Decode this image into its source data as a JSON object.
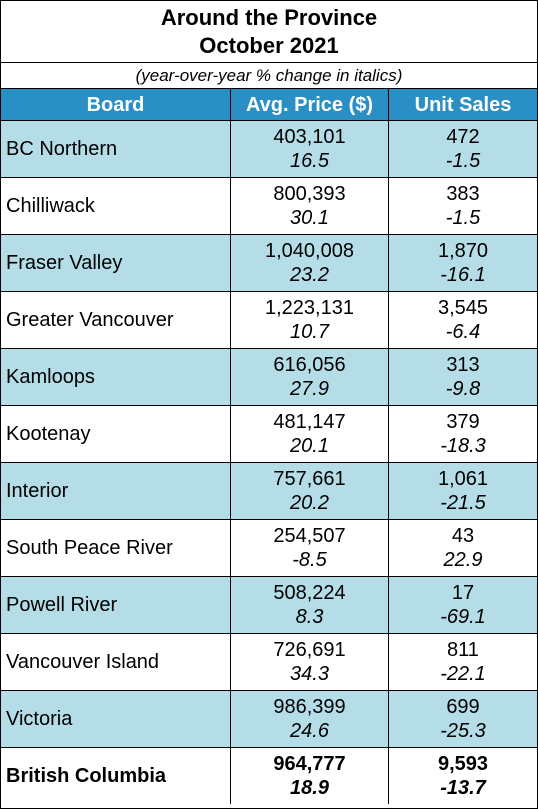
{
  "title_line1": "Around the Province",
  "title_line2": "October  2021",
  "subtitle": "(year-over-year % change in italics)",
  "columns": [
    "Board",
    "Avg. Price ($)",
    "Unit Sales"
  ],
  "rows": [
    {
      "board": "BC Northern",
      "price": "403,101",
      "price_change": "16.5",
      "sales": "472",
      "sales_change": "-1.5"
    },
    {
      "board": "Chilliwack",
      "price": "800,393",
      "price_change": "30.1",
      "sales": "383",
      "sales_change": "-1.5"
    },
    {
      "board": "Fraser Valley",
      "price": "1,040,008",
      "price_change": "23.2",
      "sales": "1,870",
      "sales_change": "-16.1"
    },
    {
      "board": "Greater Vancouver",
      "price": "1,223,131",
      "price_change": "10.7",
      "sales": "3,545",
      "sales_change": "-6.4"
    },
    {
      "board": "Kamloops",
      "price": "616,056",
      "price_change": "27.9",
      "sales": "313",
      "sales_change": "-9.8"
    },
    {
      "board": "Kootenay",
      "price": "481,147",
      "price_change": "20.1",
      "sales": "379",
      "sales_change": "-18.3"
    },
    {
      "board": "Interior",
      "price": "757,661",
      "price_change": "20.2",
      "sales": "1,061",
      "sales_change": "-21.5"
    },
    {
      "board": "South Peace River",
      "price": "254,507",
      "price_change": "-8.5",
      "sales": "43",
      "sales_change": "22.9"
    },
    {
      "board": "Powell River",
      "price": "508,224",
      "price_change": "8.3",
      "sales": "17",
      "sales_change": "-69.1"
    },
    {
      "board": "Vancouver Island",
      "price": "726,691",
      "price_change": "34.3",
      "sales": "811",
      "sales_change": "-22.1"
    },
    {
      "board": "Victoria",
      "price": "986,399",
      "price_change": "24.6",
      "sales": "699",
      "sales_change": "-25.3"
    },
    {
      "board": "British Columbia",
      "price": "964,777",
      "price_change": "18.9",
      "sales": "9,593",
      "sales_change": "-13.7"
    }
  ],
  "colors": {
    "header": "#2a8fc4",
    "shade": "#b5dde8"
  }
}
